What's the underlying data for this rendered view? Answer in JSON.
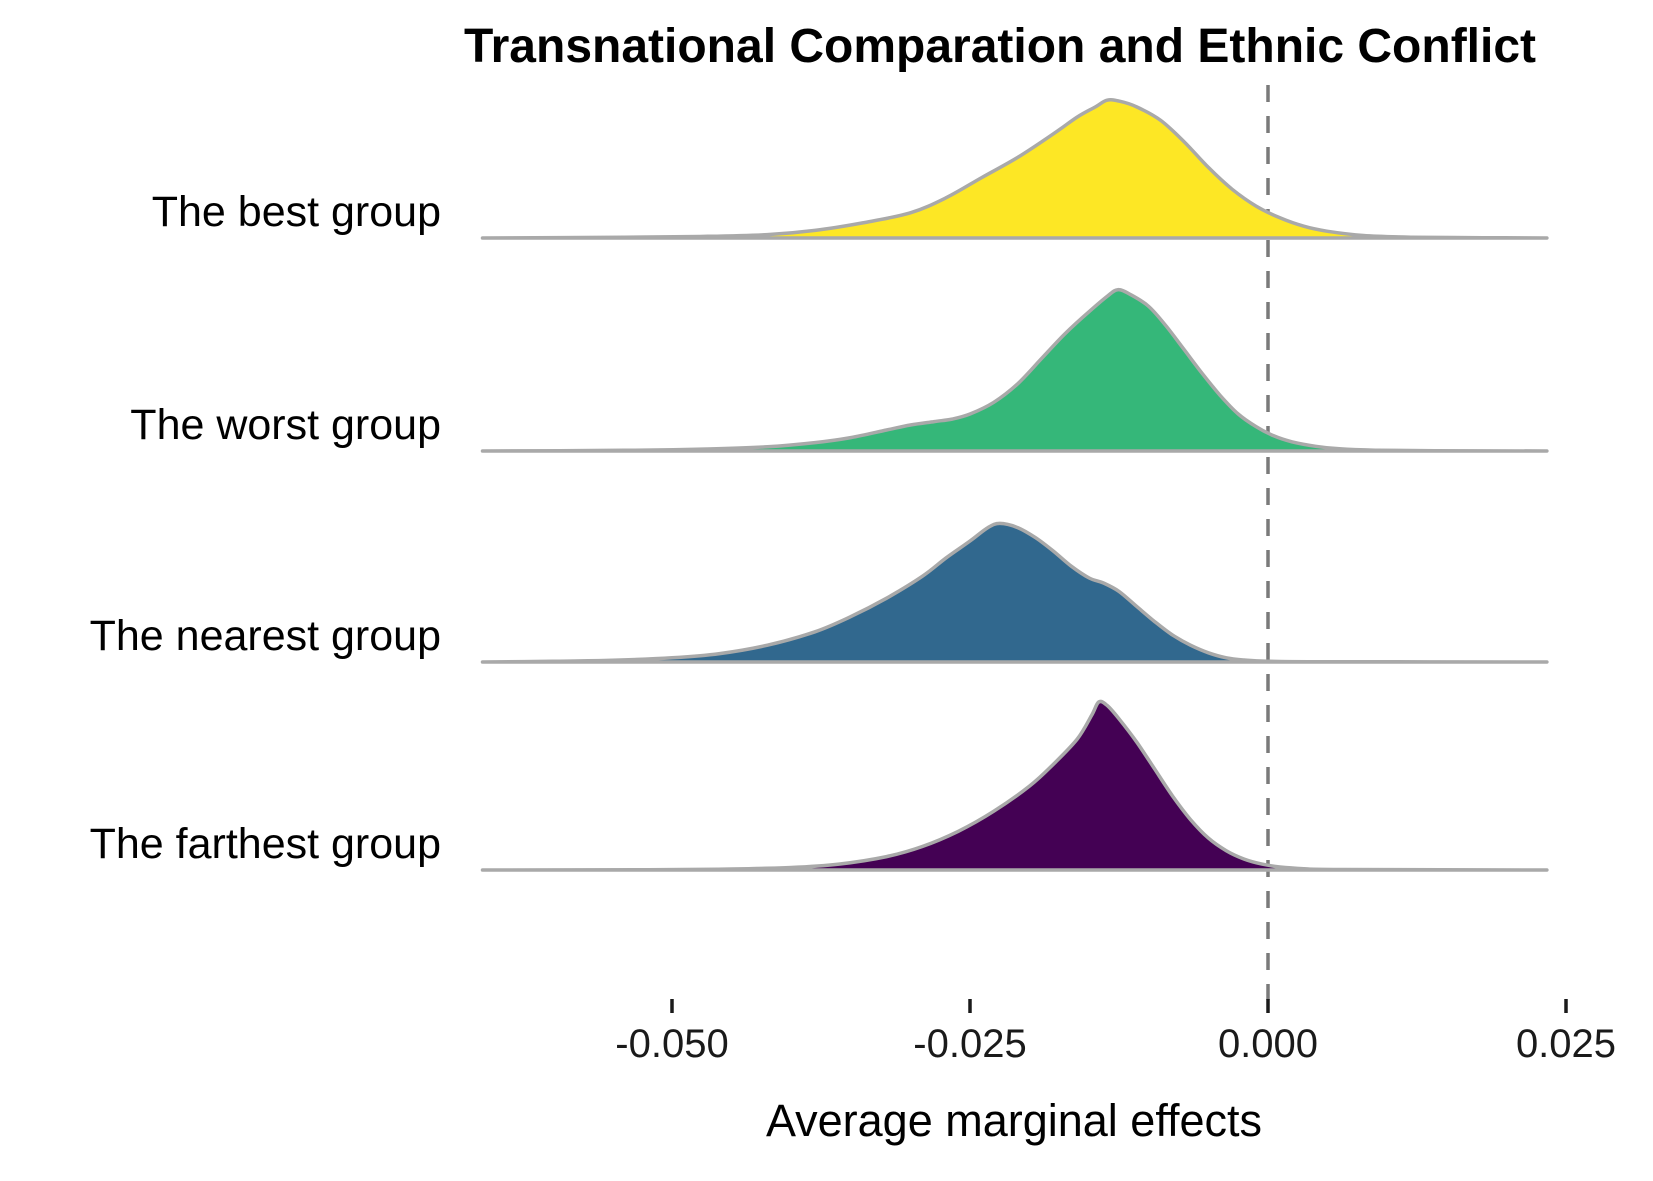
{
  "figure": {
    "title": "Transnational Comparation and Ethnic Conflict",
    "x_axis_label": "Average marginal effects"
  },
  "chart_data": {
    "type": "area",
    "subtype": "ridgeline-density",
    "title": "Transnational Comparation and Ethnic Conflict",
    "xlabel": "Average marginal effects",
    "ylabel": "",
    "grid": false,
    "legend_position": "none",
    "x_domain": [
      -0.0659,
      0.0234
    ],
    "zero_reference_line": 0.0,
    "x_ticks": [
      {
        "value": -0.05,
        "label": "-0.050"
      },
      {
        "value": -0.025,
        "label": "-0.025"
      },
      {
        "value": 0.0,
        "label": "0.000"
      },
      {
        "value": 0.025,
        "label": "0.025"
      }
    ],
    "outline_color": "#a9a9a9",
    "zero_line_color": "#7a7a7a",
    "series": [
      {
        "name": "best",
        "label": "The best group",
        "color": "#FDE725",
        "peak_x": -0.0135,
        "peak_height_rel": 0.82,
        "points": [
          [
            -0.0659,
            0.0
          ],
          [
            -0.054,
            0.004
          ],
          [
            -0.047,
            0.01
          ],
          [
            -0.042,
            0.02
          ],
          [
            -0.038,
            0.045
          ],
          [
            -0.034,
            0.09
          ],
          [
            -0.03,
            0.15
          ],
          [
            -0.027,
            0.24
          ],
          [
            -0.024,
            0.36
          ],
          [
            -0.021,
            0.48
          ],
          [
            -0.018,
            0.62
          ],
          [
            -0.016,
            0.72
          ],
          [
            -0.0145,
            0.78
          ],
          [
            -0.0135,
            0.82
          ],
          [
            -0.0125,
            0.815
          ],
          [
            -0.011,
            0.78
          ],
          [
            -0.009,
            0.7
          ],
          [
            -0.007,
            0.57
          ],
          [
            -0.005,
            0.42
          ],
          [
            -0.003,
            0.29
          ],
          [
            -0.001,
            0.19
          ],
          [
            0.001,
            0.12
          ],
          [
            0.003,
            0.07
          ],
          [
            0.005,
            0.04
          ],
          [
            0.008,
            0.015
          ],
          [
            0.012,
            0.005
          ],
          [
            0.018,
            0.002
          ],
          [
            0.0234,
            0.0
          ]
        ]
      },
      {
        "name": "worst",
        "label": "The worst group",
        "color": "#35B779",
        "peak_x": -0.0126,
        "peak_height_rel": 0.96,
        "points": [
          [
            -0.0659,
            0.0
          ],
          [
            -0.054,
            0.004
          ],
          [
            -0.047,
            0.012
          ],
          [
            -0.042,
            0.025
          ],
          [
            -0.038,
            0.05
          ],
          [
            -0.035,
            0.08
          ],
          [
            -0.032,
            0.125
          ],
          [
            -0.03,
            0.155
          ],
          [
            -0.028,
            0.175
          ],
          [
            -0.0265,
            0.19
          ],
          [
            -0.025,
            0.22
          ],
          [
            -0.023,
            0.29
          ],
          [
            -0.021,
            0.4
          ],
          [
            -0.019,
            0.55
          ],
          [
            -0.017,
            0.7
          ],
          [
            -0.015,
            0.83
          ],
          [
            -0.0135,
            0.92
          ],
          [
            -0.0126,
            0.96
          ],
          [
            -0.0115,
            0.93
          ],
          [
            -0.01,
            0.86
          ],
          [
            -0.0085,
            0.74
          ],
          [
            -0.007,
            0.6
          ],
          [
            -0.0055,
            0.46
          ],
          [
            -0.004,
            0.33
          ],
          [
            -0.0025,
            0.22
          ],
          [
            -0.001,
            0.145
          ],
          [
            0.0005,
            0.09
          ],
          [
            0.002,
            0.055
          ],
          [
            0.004,
            0.028
          ],
          [
            0.006,
            0.013
          ],
          [
            0.009,
            0.005
          ],
          [
            0.014,
            0.002
          ],
          [
            0.0234,
            0.0
          ]
        ]
      },
      {
        "name": "nearest",
        "label": "The nearest group",
        "color": "#31688E",
        "peak_x": -0.0225,
        "peak_height_rel": 0.825,
        "points": [
          [
            -0.0659,
            0.0
          ],
          [
            -0.06,
            0.004
          ],
          [
            -0.055,
            0.01
          ],
          [
            -0.05,
            0.025
          ],
          [
            -0.046,
            0.05
          ],
          [
            -0.042,
            0.1
          ],
          [
            -0.038,
            0.18
          ],
          [
            -0.035,
            0.27
          ],
          [
            -0.032,
            0.38
          ],
          [
            -0.029,
            0.51
          ],
          [
            -0.027,
            0.62
          ],
          [
            -0.025,
            0.72
          ],
          [
            -0.0235,
            0.8
          ],
          [
            -0.0225,
            0.825
          ],
          [
            -0.021,
            0.8
          ],
          [
            -0.0195,
            0.74
          ],
          [
            -0.018,
            0.66
          ],
          [
            -0.0165,
            0.57
          ],
          [
            -0.015,
            0.5
          ],
          [
            -0.0138,
            0.47
          ],
          [
            -0.0125,
            0.42
          ],
          [
            -0.011,
            0.33
          ],
          [
            -0.0095,
            0.24
          ],
          [
            -0.008,
            0.16
          ],
          [
            -0.0065,
            0.1
          ],
          [
            -0.005,
            0.055
          ],
          [
            -0.0035,
            0.025
          ],
          [
            -0.002,
            0.012
          ],
          [
            0.0,
            0.005
          ],
          [
            0.004,
            0.002
          ],
          [
            0.0234,
            0.0
          ]
        ]
      },
      {
        "name": "farthest",
        "label": "The farthest group",
        "color": "#440154",
        "peak_x": -0.0142,
        "peak_height_rel": 1.0,
        "points": [
          [
            -0.0659,
            0.0
          ],
          [
            -0.052,
            0.002
          ],
          [
            -0.045,
            0.006
          ],
          [
            -0.04,
            0.015
          ],
          [
            -0.036,
            0.035
          ],
          [
            -0.032,
            0.08
          ],
          [
            -0.029,
            0.14
          ],
          [
            -0.026,
            0.23
          ],
          [
            -0.023,
            0.35
          ],
          [
            -0.02,
            0.5
          ],
          [
            -0.018,
            0.63
          ],
          [
            -0.016,
            0.78
          ],
          [
            -0.0148,
            0.92
          ],
          [
            -0.0142,
            1.0
          ],
          [
            -0.0135,
            0.98
          ],
          [
            -0.0125,
            0.9
          ],
          [
            -0.011,
            0.76
          ],
          [
            -0.0095,
            0.6
          ],
          [
            -0.008,
            0.44
          ],
          [
            -0.0065,
            0.3
          ],
          [
            -0.005,
            0.19
          ],
          [
            -0.0035,
            0.115
          ],
          [
            -0.002,
            0.065
          ],
          [
            -0.0005,
            0.035
          ],
          [
            0.001,
            0.018
          ],
          [
            0.003,
            0.008
          ],
          [
            0.006,
            0.003
          ],
          [
            0.0234,
            0.0
          ]
        ]
      }
    ]
  }
}
